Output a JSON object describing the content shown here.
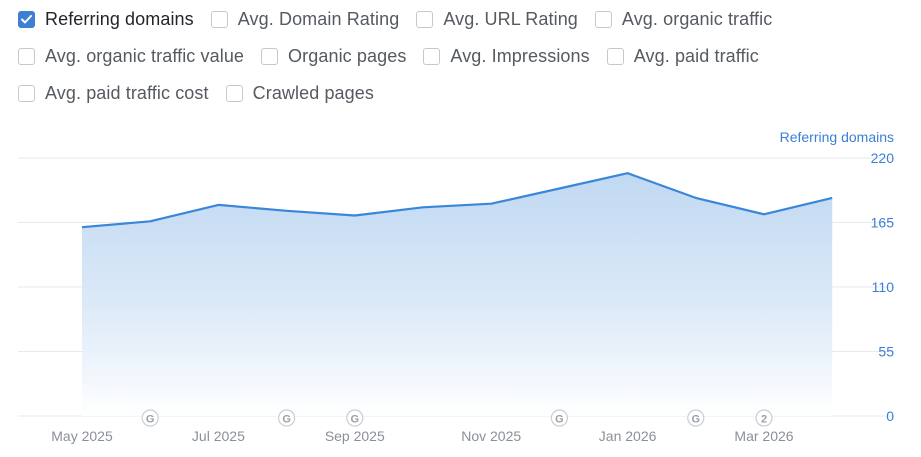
{
  "metrics": [
    {
      "label": "Referring domains",
      "checked": true
    },
    {
      "label": "Avg. Domain Rating",
      "checked": false
    },
    {
      "label": "Avg. URL Rating",
      "checked": false
    },
    {
      "label": "Avg. organic traffic",
      "checked": false
    },
    {
      "label": "Avg. organic traffic value",
      "checked": false
    },
    {
      "label": "Organic pages",
      "checked": false
    },
    {
      "label": "Avg. Impressions",
      "checked": false
    },
    {
      "label": "Avg. paid traffic",
      "checked": false
    },
    {
      "label": "Avg. paid traffic cost",
      "checked": false
    },
    {
      "label": "Crawled pages",
      "checked": false
    }
  ],
  "colors": {
    "accent": "#3d7fd4",
    "line": "#3a86d9",
    "axis_text": "#3d7fd4",
    "tick_text": "#8a9099",
    "grid": "#e7e9ec",
    "marker": "#9aa0a8"
  },
  "chart_data": {
    "type": "area",
    "ylabel": "Referring domains",
    "ylim": [
      0,
      220
    ],
    "yticks": [
      0,
      55,
      110,
      165,
      220
    ],
    "xtick_labels": [
      "May 2025",
      "Jul 2025",
      "Sep 2025",
      "Nov 2025",
      "Jan 2026",
      "Mar 2026"
    ],
    "series": [
      {
        "name": "Referring domains",
        "x": [
          "May 2025",
          "Jun 2025",
          "Jul 2025",
          "Aug 2025",
          "Sep 2025",
          "Oct 2025",
          "Nov 2025",
          "Dec 2025",
          "Jan 2026",
          "Feb 2026",
          "Mar 2026",
          "Apr 2026"
        ],
        "values": [
          161,
          166,
          180,
          175,
          171,
          178,
          181,
          194,
          207,
          186,
          172,
          186
        ]
      }
    ],
    "grid": true,
    "markers": [
      {
        "month": "Jun 2025",
        "label": "G"
      },
      {
        "month": "Aug 2025",
        "label": "G"
      },
      {
        "month": "Sep 2025",
        "label": "G"
      },
      {
        "month": "Dec 2025",
        "label": "G"
      },
      {
        "month": "Feb 2026",
        "label": "G"
      },
      {
        "month": "Mar 2026",
        "label": "2"
      }
    ]
  }
}
